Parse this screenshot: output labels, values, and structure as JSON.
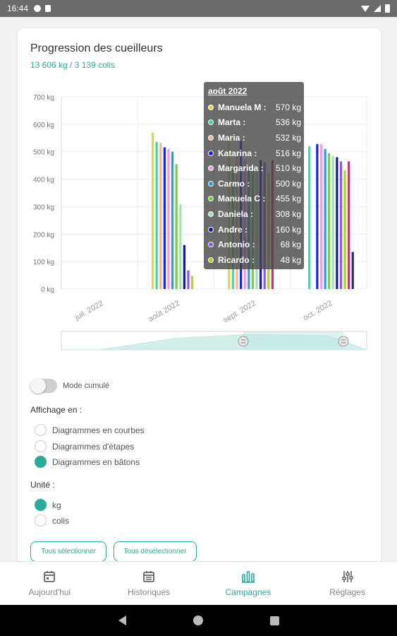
{
  "status_bar": {
    "time": "16:44"
  },
  "card": {
    "title": "Progression des cueilleurs",
    "subtitle": "13 606 kg / 3 139 colis"
  },
  "chart_data": {
    "type": "bar",
    "title": "",
    "y_ticks": [
      "0 kg",
      "100 kg",
      "200 kg",
      "300 kg",
      "400 kg",
      "500 kg",
      "600 kg",
      "700 kg"
    ],
    "ylim": [
      0,
      700
    ],
    "categories": [
      "juil. 2022",
      "août 2022",
      "sept. 2022",
      "oct. 2022"
    ],
    "grid": true,
    "series": [
      {
        "name": "Manuela M",
        "color": "#e3d64f",
        "values": [
          0,
          570,
          560,
          0
        ]
      },
      {
        "name": "Marta",
        "color": "#2fe0a0",
        "values": [
          0,
          536,
          450,
          520
        ]
      },
      {
        "name": "Maria",
        "color": "#f5b88c",
        "values": [
          0,
          532,
          500,
          0
        ]
      },
      {
        "name": "Katarina",
        "color": "#1727d6",
        "values": [
          0,
          516,
          540,
          528
        ]
      },
      {
        "name": "Margarida",
        "color": "#f29ae6",
        "values": [
          0,
          510,
          470,
          528
        ]
      },
      {
        "name": "Carmo",
        "color": "#2b9be6",
        "values": [
          0,
          500,
          440,
          510
        ]
      },
      {
        "name": "Manuela C",
        "color": "#6ed43a",
        "values": [
          0,
          455,
          430,
          495
        ]
      },
      {
        "name": "Daniela",
        "color": "#9ee6a6",
        "values": [
          0,
          308,
          440,
          485
        ]
      },
      {
        "name": "Andre",
        "color": "#13198f",
        "values": [
          0,
          160,
          470,
          480
        ]
      },
      {
        "name": "Antonio",
        "color": "#8a58e6",
        "values": [
          0,
          68,
          460,
          465
        ]
      },
      {
        "name": "Ricardo",
        "color": "#a8d62c",
        "values": [
          0,
          48,
          420,
          432
        ]
      },
      {
        "name": "",
        "color": "#e0246e",
        "values": [
          0,
          0,
          470,
          465
        ]
      },
      {
        "name": "",
        "color": "#1d2a9b",
        "values": [
          0,
          0,
          0,
          135
        ]
      }
    ],
    "tooltip": {
      "title": "août 2022",
      "rows": [
        {
          "name": "Manuela M :",
          "value": "570 kg",
          "color": "#e3d64f"
        },
        {
          "name": "Marta :",
          "value": "536 kg",
          "color": "#2fe0a0"
        },
        {
          "name": "Maria :",
          "value": "532 kg",
          "color": "#f5b88c"
        },
        {
          "name": "Katarina :",
          "value": "516 kg",
          "color": "#1727d6"
        },
        {
          "name": "Margarida :",
          "value": "510 kg",
          "color": "#f29ae6"
        },
        {
          "name": "Carmo :",
          "value": "500 kg",
          "color": "#2b9be6"
        },
        {
          "name": "Manuela C :",
          "value": "455 kg",
          "color": "#6ed43a"
        },
        {
          "name": "Daniela :",
          "value": "308 kg",
          "color": "#9ee6a6"
        },
        {
          "name": "Andre :",
          "value": "160 kg",
          "color": "#13198f"
        },
        {
          "name": "Antonio :",
          "value": "68 kg",
          "color": "#8a58e6"
        },
        {
          "name": "Ricardo :",
          "value": "48 kg",
          "color": "#a8d62c"
        }
      ]
    }
  },
  "controls": {
    "cumul_label": "Mode cumulé",
    "cumul_on": false,
    "display_label": "Affichage en :",
    "display_options": [
      "Diagrammes en courbes",
      "Diagrammes d'étapes",
      "Diagrammes en bâtons"
    ],
    "display_selected": 2,
    "unit_label": "Unité :",
    "unit_options": [
      "kg",
      "colis"
    ],
    "unit_selected": 0,
    "select_all": "Tous sélectionner",
    "deselect_all": "Tous désélectionner"
  },
  "colors": {
    "accent": "#2aab98"
  },
  "bottom_nav": [
    {
      "label": "Aujourd'hui",
      "icon": "calendar-today-icon",
      "active": false
    },
    {
      "label": "Historiques",
      "icon": "calendar-list-icon",
      "active": false
    },
    {
      "label": "Campagnes",
      "icon": "bar-chart-icon",
      "active": true
    },
    {
      "label": "Réglages",
      "icon": "sliders-icon",
      "active": false
    }
  ]
}
